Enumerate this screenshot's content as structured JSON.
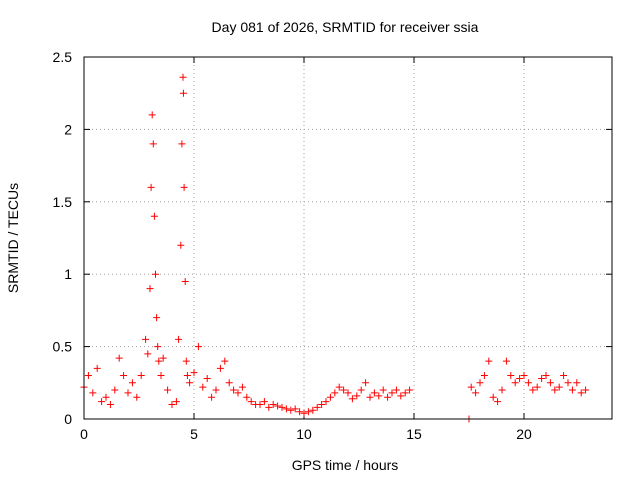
{
  "chart_data": {
    "type": "scatter",
    "title": "Day 081 of 2026, SRMTID for receiver ssia",
    "xlabel": "GPS time / hours",
    "ylabel": "SRMTID / TECUs",
    "xlim": [
      0,
      24
    ],
    "ylim": [
      0,
      2.5
    ],
    "xticks": [
      0,
      5,
      10,
      15,
      20
    ],
    "xtick_labels": [
      "0",
      "5",
      "10",
      "15",
      "20"
    ],
    "yticks": [
      0,
      0.5,
      1,
      1.5,
      2,
      2.5
    ],
    "ytick_labels": [
      "0",
      "0.5",
      "1",
      "1.5",
      "2",
      "2.5"
    ],
    "grid": true,
    "marker": "+",
    "series": [
      {
        "name": "SRMTID",
        "color": "#ff0000",
        "x": [
          0.0,
          0.2,
          0.4,
          0.6,
          0.8,
          1.0,
          1.2,
          1.4,
          1.6,
          1.8,
          2.0,
          2.2,
          2.4,
          2.6,
          2.8,
          2.9,
          3.0,
          3.05,
          3.1,
          3.15,
          3.2,
          3.25,
          3.3,
          3.35,
          3.4,
          3.5,
          3.6,
          3.8,
          4.0,
          4.2,
          4.3,
          4.4,
          4.45,
          4.5,
          4.52,
          4.55,
          4.6,
          4.65,
          4.7,
          4.8,
          5.0,
          5.2,
          5.4,
          5.6,
          5.8,
          6.0,
          6.2,
          6.4,
          6.6,
          6.8,
          7.0,
          7.2,
          7.4,
          7.6,
          7.8,
          8.0,
          8.2,
          8.4,
          8.6,
          8.8,
          9.0,
          9.2,
          9.4,
          9.6,
          9.8,
          10.0,
          10.2,
          10.4,
          10.6,
          10.8,
          11.0,
          11.2,
          11.4,
          11.6,
          11.8,
          12.0,
          12.2,
          12.4,
          12.6,
          12.8,
          13.0,
          13.2,
          13.4,
          13.6,
          13.8,
          14.0,
          14.2,
          14.4,
          14.6,
          14.8,
          17.5,
          17.6,
          17.8,
          18.0,
          18.2,
          18.4,
          18.6,
          18.8,
          19.0,
          19.2,
          19.4,
          19.6,
          19.8,
          20.0,
          20.2,
          20.4,
          20.6,
          20.8,
          21.0,
          21.2,
          21.4,
          21.6,
          21.8,
          22.0,
          22.2,
          22.4,
          22.6,
          22.8
        ],
        "y": [
          0.22,
          0.3,
          0.18,
          0.35,
          0.12,
          0.15,
          0.1,
          0.2,
          0.42,
          0.3,
          0.18,
          0.25,
          0.15,
          0.3,
          0.55,
          0.45,
          0.9,
          1.6,
          2.1,
          1.9,
          1.4,
          1.0,
          0.7,
          0.5,
          0.4,
          0.3,
          0.42,
          0.2,
          0.1,
          0.12,
          0.55,
          1.2,
          1.9,
          2.36,
          2.25,
          1.6,
          0.95,
          0.4,
          0.3,
          0.25,
          0.32,
          0.5,
          0.22,
          0.28,
          0.15,
          0.2,
          0.35,
          0.4,
          0.25,
          0.2,
          0.18,
          0.22,
          0.15,
          0.12,
          0.1,
          0.1,
          0.12,
          0.08,
          0.1,
          0.09,
          0.08,
          0.07,
          0.06,
          0.07,
          0.05,
          0.04,
          0.05,
          0.06,
          0.08,
          0.1,
          0.12,
          0.15,
          0.18,
          0.22,
          0.2,
          0.18,
          0.14,
          0.16,
          0.2,
          0.25,
          0.15,
          0.18,
          0.16,
          0.2,
          0.15,
          0.18,
          0.2,
          0.16,
          0.18,
          0.2,
          0.0,
          0.22,
          0.18,
          0.25,
          0.3,
          0.4,
          0.15,
          0.12,
          0.2,
          0.4,
          0.3,
          0.25,
          0.28,
          0.3,
          0.25,
          0.2,
          0.22,
          0.28,
          0.3,
          0.25,
          0.2,
          0.22,
          0.3,
          0.25,
          0.2,
          0.25,
          0.18,
          0.2
        ]
      }
    ]
  }
}
